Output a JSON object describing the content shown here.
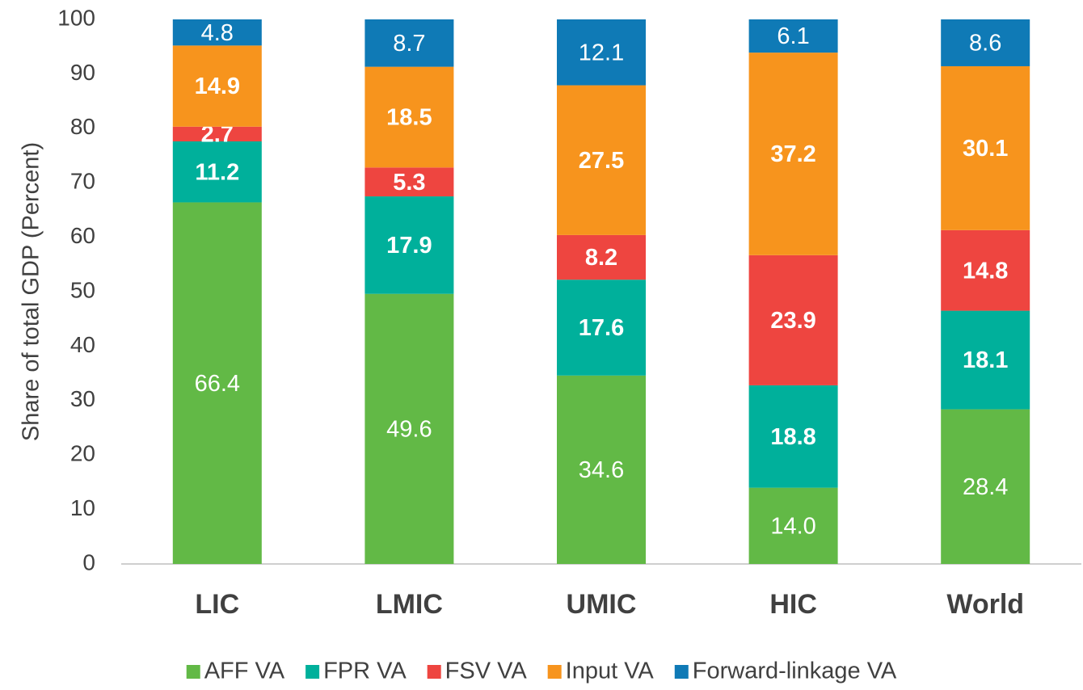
{
  "chart_data": {
    "type": "stacked_bar",
    "y_axis_label": "Share of total GDP (Percent)",
    "categories": [
      "LIC",
      "LMIC",
      "UMIC",
      "HIC",
      "World"
    ],
    "series": [
      {
        "name": "AFF VA",
        "color": "#62b946",
        "label_bold": false,
        "values": [
          66.4,
          49.6,
          34.6,
          14,
          28.4
        ],
        "value_labels": [
          "66.4",
          "49.6",
          "34.6",
          "14.0",
          "28.4"
        ]
      },
      {
        "name": "FPR VA",
        "color": "#00b09b",
        "label_bold": true,
        "values": [
          11.2,
          17.9,
          17.6,
          18.8,
          18.1
        ],
        "value_labels": [
          "11.2",
          "17.9",
          "17.6",
          "18.8",
          "18.1"
        ]
      },
      {
        "name": "FSV VA",
        "color": "#ee4540",
        "label_bold": true,
        "values": [
          2.7,
          5.3,
          8.2,
          23.9,
          14.8
        ],
        "value_labels": [
          "2.7",
          "5.3",
          "8.2",
          "23.9",
          "14.8"
        ]
      },
      {
        "name": "Input VA",
        "color": "#f7941d",
        "label_bold": true,
        "values": [
          14.9,
          18.5,
          27.5,
          37.2,
          30.1
        ],
        "value_labels": [
          "14.9",
          "18.5",
          "27.5",
          "37.2",
          "30.1"
        ]
      },
      {
        "name": "Forward-linkage VA",
        "color": "#0f7ab6",
        "label_bold": false,
        "values": [
          4.8,
          8.7,
          12.1,
          6.1,
          8.6
        ],
        "value_labels": [
          "4.8",
          "8.7",
          "12.1",
          "6.1",
          "8.6"
        ]
      }
    ],
    "ylim": [
      0,
      100
    ],
    "yticks": [
      0,
      10,
      20,
      30,
      40,
      50,
      60,
      70,
      80,
      90,
      100
    ],
    "grid": false,
    "legend": "bottom"
  }
}
